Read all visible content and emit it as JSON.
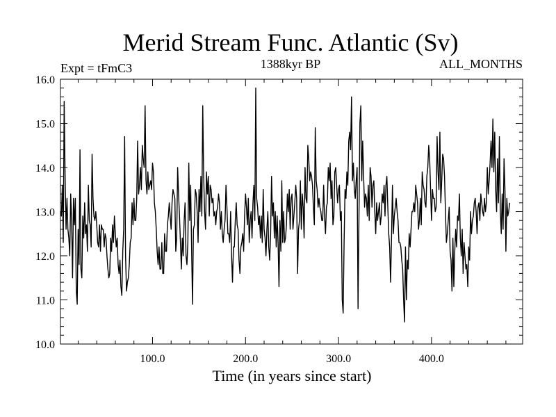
{
  "chart_data": {
    "type": "line",
    "title": "Merid Stream Func. Atlantic (Sv)",
    "subtitle_left": "Expt = tFmC3",
    "subtitle_center": "1388kyr BP",
    "subtitle_right": "ALL_MONTHS",
    "xlabel": "Time (in years since start)",
    "ylabel": "",
    "xlim": [
      1,
      498
    ],
    "ylim": [
      10.0,
      16.0
    ],
    "x_ticks": [
      100,
      200,
      300,
      400
    ],
    "x_tick_labels": [
      "100.0",
      "200.0",
      "300.0",
      "400.0"
    ],
    "y_ticks": [
      10,
      11,
      12,
      13,
      14,
      15,
      16
    ],
    "y_tick_labels": [
      "10.0",
      "11.0",
      "12.0",
      "13.0",
      "14.0",
      "15.0",
      "16.0"
    ],
    "grid": false,
    "series": [
      {
        "name": "Merid Stream Func. Atlantic",
        "color": "#000000",
        "x_start": 1,
        "x_step": 1,
        "values": [
          13.0,
          12.9,
          13.6,
          12.3,
          15.5,
          13.8,
          12.6,
          13.3,
          12.6,
          12.4,
          12.0,
          13.4,
          12.8,
          11.5,
          13.3,
          12.7,
          13.3,
          11.2,
          10.9,
          12.6,
          11.8,
          14.4,
          11.7,
          11.5,
          12.9,
          12.4,
          13.2,
          12.5,
          12.7,
          12.1,
          13.6,
          12.8,
          12.7,
          12.2,
          14.3,
          13.3,
          12.9,
          12.8,
          13.0,
          12.7,
          12.3,
          12.2,
          12.7,
          12.1,
          12.7,
          12.6,
          12.6,
          12.2,
          12.5,
          12.4,
          12.0,
          11.7,
          11.5,
          11.6,
          12.4,
          12.1,
          12.7,
          12.3,
          12.9,
          12.5,
          12.2,
          12.4,
          11.8,
          11.6,
          11.9,
          11.3,
          11.1,
          12.1,
          12.6,
          14.7,
          12.0,
          11.2,
          11.4,
          11.5,
          11.8,
          12.3,
          12.4,
          13.2,
          12.7,
          13.3,
          12.8,
          12.8,
          13.3,
          14.6,
          13.4,
          13.6,
          14.0,
          13.5,
          14.5,
          14.2,
          14.0,
          15.4,
          13.7,
          13.4,
          13.9,
          13.5,
          13.6,
          13.7,
          13.5,
          14.1,
          13.9,
          13.2,
          13.0,
          12.6,
          12.1,
          11.8,
          12.2,
          11.7,
          11.7,
          12.3,
          11.6,
          11.6,
          12.5,
          12.1,
          12.1,
          12.7,
          12.9,
          13.2,
          12.9,
          12.6,
          13.2,
          13.5,
          13.4,
          13.3,
          12.1,
          12.4,
          14.0,
          13.4,
          12.9,
          12.3,
          11.7,
          12.4,
          12.0,
          12.8,
          13.2,
          12.0,
          11.8,
          12.3,
          14.1,
          12.8,
          13.6,
          12.2,
          10.9,
          12.6,
          12.7,
          13.5,
          13.4,
          13.0,
          12.3,
          13.5,
          13.0,
          13.8,
          12.9,
          15.4,
          13.8,
          13.0,
          12.6,
          13.9,
          13.4,
          13.8,
          12.9,
          13.6,
          13.5,
          13.2,
          13.3,
          12.9,
          13.0,
          12.7,
          13.0,
          13.1,
          13.4,
          13.2,
          12.6,
          13.0,
          12.5,
          12.3,
          12.6,
          12.8,
          13.6,
          13.1,
          12.5,
          12.5,
          12.3,
          13.0,
          12.0,
          11.4,
          12.2,
          12.2,
          12.8,
          13.2,
          12.7,
          12.6,
          11.9,
          11.6,
          12.2,
          12.3,
          12.5,
          12.1,
          12.9,
          13.4,
          13.1,
          12.7,
          13.3,
          12.3,
          12.8,
          13.0,
          12.4,
          13.2,
          13.6,
          12.8,
          15.8,
          13.3,
          13.1,
          12.7,
          12.9,
          12.4,
          12.9,
          12.3,
          13.5,
          12.6,
          12.4,
          12.0,
          12.6,
          13.0,
          12.2,
          11.9,
          12.5,
          13.8,
          12.9,
          13.2,
          12.4,
          13.0,
          12.2,
          12.9,
          12.3,
          11.3,
          12.8,
          12.1,
          13.7,
          12.3,
          13.0,
          12.3,
          12.4,
          12.7,
          13.4,
          13.0,
          13.5,
          12.6,
          13.3,
          13.4,
          12.6,
          12.9,
          13.2,
          13.6,
          13.3,
          11.6,
          12.6,
          12.8,
          13.7,
          12.6,
          13.4,
          13.1,
          12.4,
          14.0,
          13.3,
          13.2,
          14.5,
          14.2,
          13.7,
          13.9,
          13.8,
          13.6,
          13.1,
          12.7,
          14.9,
          13.7,
          13.5,
          13.1,
          13.3,
          13.1,
          13.0,
          12.8,
          12.8,
          13.6,
          12.9,
          12.5,
          13.1,
          13.2,
          14.0,
          13.7,
          14.1,
          13.3,
          13.7,
          12.7,
          12.9,
          13.9,
          14.0,
          13.6,
          13.2,
          13.5,
          13.6,
          12.8,
          13.0,
          11.0,
          10.7,
          12.3,
          13.5,
          13.3,
          13.9,
          13.6,
          14.6,
          14.8,
          14.4,
          15.6,
          13.7,
          14.1,
          13.5,
          13.3,
          13.7,
          14.0,
          10.8,
          12.9,
          15.0,
          15.4,
          13.7,
          14.6,
          13.8,
          13.1,
          13.4,
          13.3,
          12.9,
          13.6,
          12.8,
          14.0,
          13.8,
          13.1,
          13.6,
          13.7,
          13.0,
          12.5,
          13.2,
          12.8,
          13.0,
          13.2,
          12.7,
          12.9,
          13.4,
          13.2,
          13.6,
          12.9,
          13.6,
          13.8,
          13.1,
          12.5,
          12.2,
          11.4,
          12.4,
          13.6,
          12.5,
          12.9,
          13.1,
          13.3,
          13.0,
          12.8,
          12.3,
          12.3,
          12.2,
          11.9,
          11.7,
          11.0,
          10.5,
          12.2,
          11.0,
          11.9,
          11.7,
          12.5,
          12.2,
          12.6,
          13.0,
          13.0,
          13.2,
          13.0,
          13.6,
          13.4,
          13.2,
          12.6,
          12.8,
          13.3,
          12.7,
          13.9,
          13.6,
          13.5,
          13.2,
          13.1,
          13.8,
          14.0,
          14.5,
          14.2,
          13.5,
          12.8,
          13.5,
          13.3,
          13.3,
          13.0,
          13.1,
          14.7,
          13.9,
          13.5,
          14.8,
          13.2,
          13.7,
          14.3,
          14.2,
          13.8,
          13.0,
          12.3,
          12.5,
          12.8,
          13.1,
          12.1,
          11.9,
          11.2,
          12.4,
          11.3,
          12.1,
          12.6,
          12.2,
          12.9,
          12.8,
          13.4,
          12.4,
          12.0,
          12.6,
          11.6,
          12.3,
          12.0,
          11.7,
          11.8,
          11.3,
          12.2,
          11.9,
          13.0,
          12.5,
          12.8,
          12.9,
          13.2,
          13.3,
          13.0,
          12.5,
          13.1,
          13.2,
          12.8,
          13.4,
          13.2,
          13.0,
          12.9,
          13.3,
          13.0,
          13.2,
          14.0,
          13.4,
          13.7,
          14.1,
          14.6,
          14.0,
          15.1,
          13.9,
          14.8,
          13.5,
          13.0,
          14.2,
          13.2,
          14.7,
          13.0,
          12.5,
          13.4,
          12.6,
          14.2,
          13.5,
          12.1,
          13.3,
          12.9,
          13.0,
          13.2
        ]
      }
    ]
  }
}
